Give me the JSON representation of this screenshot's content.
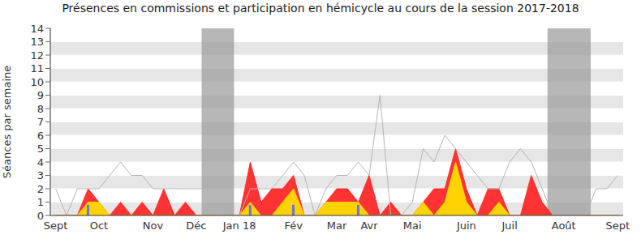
{
  "chart_data": {
    "type": "area",
    "title": "Présences en commissions et participation en hémicycle au cours de la session 2017-2018",
    "y_label": "Séances par semaine",
    "categories": [
      "Sept",
      null,
      null,
      null,
      "Oct",
      null,
      null,
      null,
      null,
      "Nov",
      null,
      null,
      null,
      "Déc",
      null,
      null,
      null,
      "Jan 18",
      null,
      null,
      null,
      null,
      "Fév",
      null,
      null,
      null,
      "Mar",
      null,
      null,
      "Avr",
      null,
      null,
      null,
      "Mai",
      null,
      null,
      null,
      null,
      "Juin",
      null,
      null,
      null,
      "Juil",
      null,
      null,
      null,
      null,
      "Août",
      null,
      null,
      null,
      null,
      "Sept"
    ],
    "series": [
      {
        "type": "area",
        "color": "#ff3333",
        "values": [
          0,
          0,
          0,
          2,
          1,
          0,
          1,
          0,
          1,
          0,
          2,
          0,
          1,
          0,
          0,
          0,
          0,
          0,
          4,
          1,
          2,
          2,
          3,
          0,
          0,
          1,
          2,
          2,
          1,
          3,
          0,
          1,
          0,
          0,
          1,
          2,
          2,
          5,
          2,
          0,
          2,
          2,
          0,
          0,
          3,
          1,
          0,
          0,
          0,
          0,
          0,
          0,
          0
        ]
      },
      {
        "type": "area",
        "color": "#ffd200",
        "values": [
          0,
          0,
          0,
          1,
          1,
          0,
          0,
          0,
          0,
          0,
          0,
          0,
          0,
          0,
          0,
          0,
          0,
          0,
          1,
          0,
          0,
          1,
          2,
          0,
          0,
          1,
          1,
          1,
          1,
          0,
          0,
          0,
          0,
          0,
          1,
          0,
          1,
          4,
          1,
          0,
          0,
          1,
          0,
          0,
          0,
          0,
          0,
          0,
          0,
          0,
          0,
          0,
          0
        ]
      },
      {
        "type": "line",
        "color": "#b4b4b4",
        "values": [
          2,
          0,
          2,
          2,
          2,
          3,
          4,
          3,
          3,
          2,
          2,
          2,
          2,
          2,
          2,
          0,
          0,
          0,
          2,
          2,
          2,
          3,
          4,
          3,
          0,
          2,
          3,
          3,
          4,
          3,
          9,
          0,
          0,
          1,
          5,
          4,
          6,
          5,
          4,
          3,
          2,
          2,
          4,
          5,
          4,
          2,
          0,
          0,
          0,
          0,
          2,
          2,
          3
        ]
      },
      {
        "type": "bar",
        "color": "#6f6fe8",
        "values": [
          0,
          0,
          0,
          0.8,
          0,
          0,
          0,
          0,
          0,
          0,
          0,
          0,
          0,
          0,
          0,
          0,
          0,
          0,
          0.8,
          0,
          0,
          0,
          0.8,
          0,
          0,
          0,
          0,
          0,
          0.8,
          0,
          0,
          0,
          0,
          0,
          0,
          0,
          0,
          0,
          0,
          0,
          0,
          0,
          0,
          0,
          0,
          0,
          0,
          0,
          0,
          0,
          0,
          0,
          0
        ]
      }
    ],
    "shaded_weeks": [
      [
        14,
        16
      ],
      [
        46,
        49
      ]
    ],
    "ylim": [
      0,
      14
    ],
    "yticks": [
      0,
      1,
      2,
      3,
      4,
      5,
      6,
      7,
      8,
      9,
      10,
      11,
      12,
      13,
      14
    ],
    "grid": true
  }
}
